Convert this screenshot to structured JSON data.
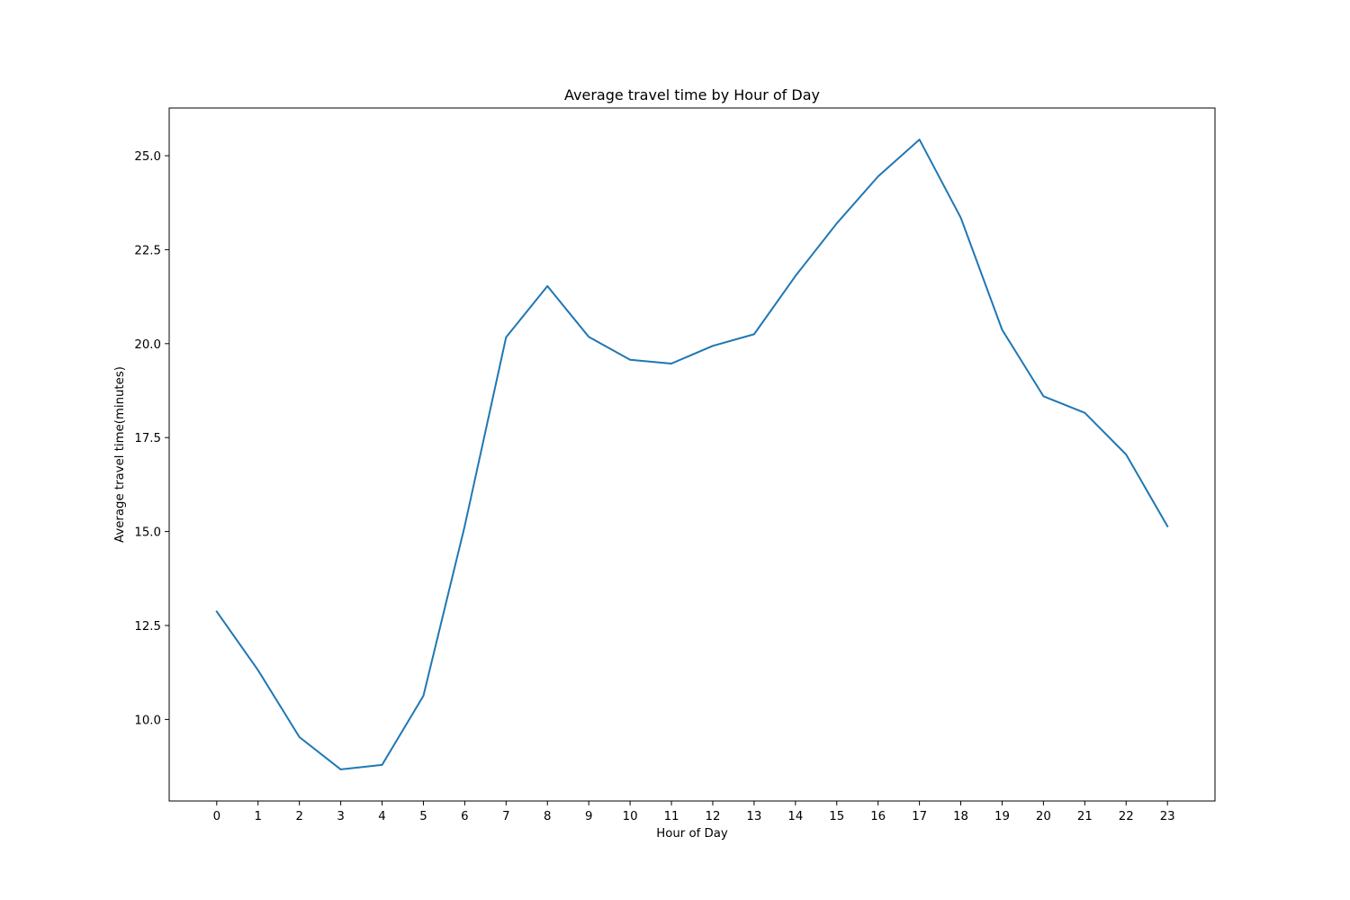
{
  "chart_data": {
    "type": "line",
    "title": "Average travel time by Hour of Day",
    "xlabel": "Hour of Day",
    "ylabel": "Average travel time(minutes)",
    "x": [
      0,
      1,
      2,
      3,
      4,
      5,
      6,
      7,
      8,
      9,
      10,
      11,
      12,
      13,
      14,
      15,
      16,
      17,
      18,
      19,
      20,
      21,
      22,
      23
    ],
    "series": [
      {
        "values": [
          12.87,
          11.31,
          9.53,
          8.67,
          8.79,
          10.63,
          15.15,
          20.17,
          21.53,
          20.18,
          19.57,
          19.47,
          19.94,
          20.25,
          21.8,
          23.2,
          24.45,
          25.43,
          23.35,
          20.37,
          18.6,
          18.16,
          17.05,
          15.14
        ],
        "color": "#1f77b4"
      }
    ],
    "xlim": [
      -1.15,
      24.15
    ],
    "ylim": [
      7.83,
      26.27
    ],
    "xticks": [
      "0",
      "1",
      "2",
      "3",
      "4",
      "5",
      "6",
      "7",
      "8",
      "9",
      "10",
      "11",
      "12",
      "13",
      "14",
      "15",
      "16",
      "17",
      "18",
      "19",
      "20",
      "21",
      "22",
      "23"
    ],
    "yticks": [
      10.0,
      12.5,
      15.0,
      17.5,
      20.0,
      22.5,
      25.0
    ],
    "ytick_labels": [
      "10.0",
      "12.5",
      "15.0",
      "17.5",
      "20.0",
      "22.5",
      "25.0"
    ],
    "grid": false,
    "legend": "none"
  }
}
